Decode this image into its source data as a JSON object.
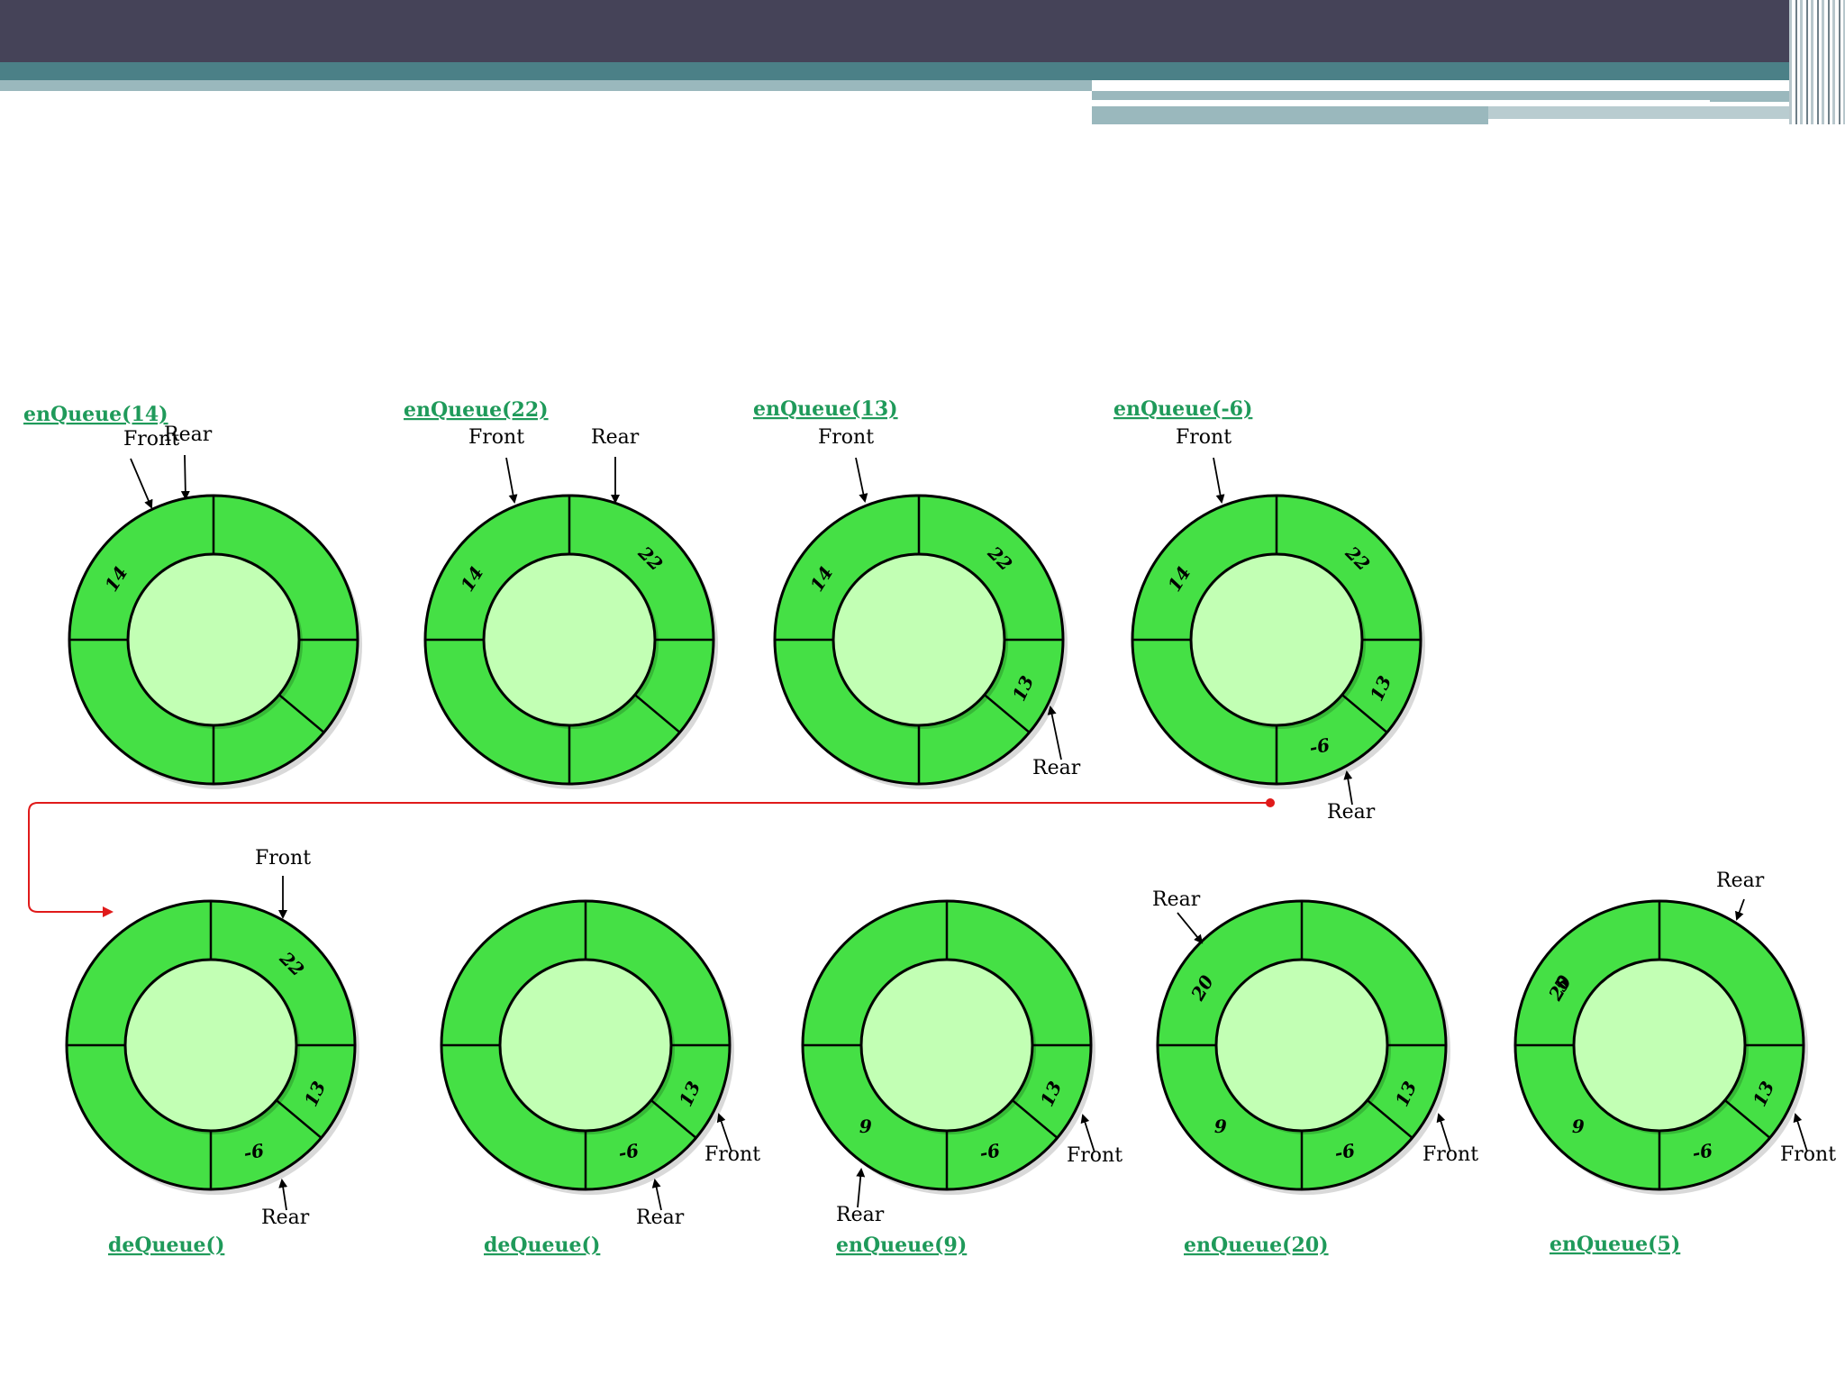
{
  "labels": {
    "front": "Front",
    "rear": "Rear"
  },
  "colors": {
    "ring": "#45e045",
    "inner": "#c2ffb4",
    "stroke": "#000000",
    "op_label": "#1f9a5a",
    "connector": "#e01a1a"
  },
  "steps": [
    {
      "op": "enQueue(14)",
      "values": [
        "14",
        "",
        "",
        "",
        "",
        ""
      ]
    },
    {
      "op": "enQueue(22)",
      "values": [
        "14",
        "22",
        "",
        "",
        "",
        ""
      ]
    },
    {
      "op": "enQueue(13)",
      "values": [
        "14",
        "22",
        "13",
        "",
        "",
        ""
      ]
    },
    {
      "op": "enQueue(-6)",
      "values": [
        "14",
        "22",
        "13",
        "-6",
        "",
        ""
      ]
    },
    {
      "op": "deQueue()",
      "values": [
        "",
        "22",
        "13",
        "-6",
        "",
        ""
      ]
    },
    {
      "op": "deQueue()",
      "values": [
        "",
        "",
        "13",
        "-6",
        "",
        ""
      ]
    },
    {
      "op": "enQueue(9)",
      "values": [
        "",
        "",
        "13",
        "-6",
        "9",
        ""
      ]
    },
    {
      "op": "enQueue(20)",
      "values": [
        "",
        "",
        "13",
        "-6",
        "9",
        "20"
      ]
    },
    {
      "op": "enQueue(5)",
      "values": [
        "5",
        "",
        "13",
        "-6",
        "9",
        "20"
      ]
    }
  ]
}
